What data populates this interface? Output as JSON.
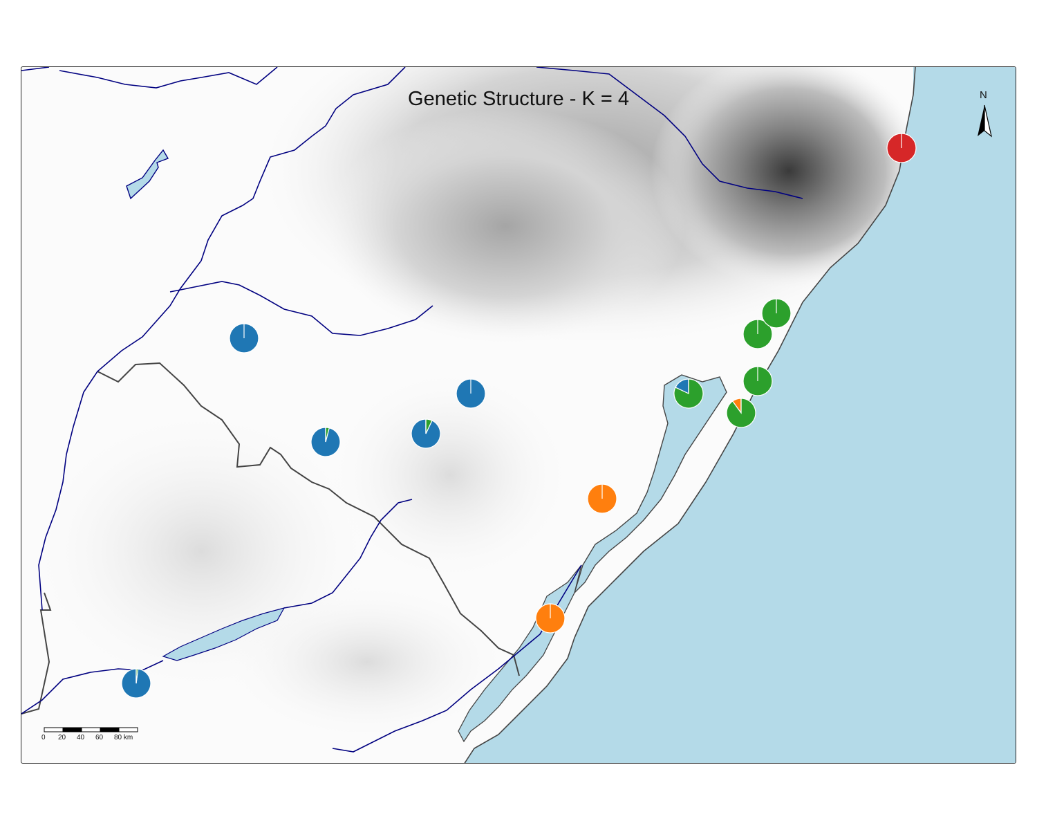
{
  "title": "Genetic Structure - K = 4",
  "north_arrow": {
    "label": "N"
  },
  "scale_bar": {
    "labels": [
      "0",
      "20",
      "40",
      "60",
      "80 km"
    ]
  },
  "colors": {
    "cluster_blue": "#1f77b4",
    "cluster_orange": "#ff7f0e",
    "cluster_green": "#2ca02c",
    "cluster_red": "#d62728",
    "water": "#b4dae8",
    "rivers": "#000080",
    "border": "#444444"
  },
  "clusters": [
    "blue",
    "orange",
    "green",
    "red"
  ],
  "populations": [
    {
      "id": "p1",
      "proportions": [
        1.0,
        0.0,
        0.0,
        0.0
      ]
    },
    {
      "id": "p2",
      "proportions": [
        0.96,
        0.0,
        0.04,
        0.0
      ]
    },
    {
      "id": "p3",
      "proportions": [
        0.93,
        0.0,
        0.07,
        0.0
      ]
    },
    {
      "id": "p4",
      "proportions": [
        1.0,
        0.0,
        0.0,
        0.0
      ]
    },
    {
      "id": "p5",
      "proportions": [
        0.98,
        0.0,
        0.02,
        0.0
      ]
    },
    {
      "id": "p6",
      "proportions": [
        0.18,
        0.0,
        0.82,
        0.0
      ]
    },
    {
      "id": "p7",
      "proportions": [
        0.0,
        0.1,
        0.9,
        0.0
      ]
    },
    {
      "id": "p8",
      "proportions": [
        0.0,
        0.0,
        1.0,
        0.0
      ]
    },
    {
      "id": "p9",
      "proportions": [
        0.0,
        0.0,
        1.0,
        0.0
      ]
    },
    {
      "id": "p10",
      "proportions": [
        0.0,
        0.0,
        1.0,
        0.0
      ]
    },
    {
      "id": "p11",
      "proportions": [
        0.0,
        1.0,
        0.0,
        0.0
      ]
    },
    {
      "id": "p12",
      "proportions": [
        0.0,
        1.0,
        0.0,
        0.0
      ]
    },
    {
      "id": "p13",
      "proportions": [
        0.0,
        0.0,
        0.0,
        1.0
      ]
    }
  ]
}
